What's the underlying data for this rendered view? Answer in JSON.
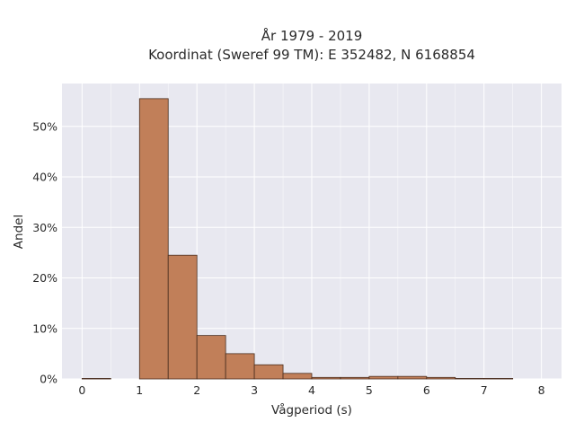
{
  "chart_data": {
    "type": "bar",
    "title_line1": "År 1979 - 2019",
    "title_line2": "Koordinat (Sweref 99 TM): E 352482, N 6168854",
    "xlabel": "Vågperiod (s)",
    "ylabel": "Andel",
    "xlim": [
      -0.35,
      8.35
    ],
    "ylim": [
      0,
      58.5
    ],
    "x_ticks": [
      0,
      1,
      2,
      3,
      4,
      5,
      6,
      7,
      8
    ],
    "x_tick_labels": [
      "0",
      "1",
      "2",
      "3",
      "4",
      "5",
      "6",
      "7",
      "8"
    ],
    "y_ticks": [
      0,
      10,
      20,
      30,
      40,
      50
    ],
    "y_tick_labels": [
      "0%",
      "10%",
      "20%",
      "30%",
      "40%",
      "50%"
    ],
    "bin_width": 0.5,
    "bins": [
      {
        "x0": 0.0,
        "value": 0.1
      },
      {
        "x0": 1.0,
        "value": 55.5
      },
      {
        "x0": 1.5,
        "value": 24.5
      },
      {
        "x0": 2.0,
        "value": 8.6
      },
      {
        "x0": 2.5,
        "value": 5.0
      },
      {
        "x0": 3.0,
        "value": 2.8
      },
      {
        "x0": 3.5,
        "value": 1.1
      },
      {
        "x0": 4.0,
        "value": 0.3
      },
      {
        "x0": 4.5,
        "value": 0.3
      },
      {
        "x0": 5.0,
        "value": 0.5
      },
      {
        "x0": 5.5,
        "value": 0.5
      },
      {
        "x0": 6.0,
        "value": 0.3
      },
      {
        "x0": 6.5,
        "value": 0.1
      },
      {
        "x0": 7.0,
        "value": 0.1
      }
    ],
    "grid": true,
    "colors": {
      "plot_background": "#e8e8f0",
      "grid": "#ffffff",
      "bar_fill": "#c17f59",
      "bar_edge": "#4a2e1f"
    }
  }
}
